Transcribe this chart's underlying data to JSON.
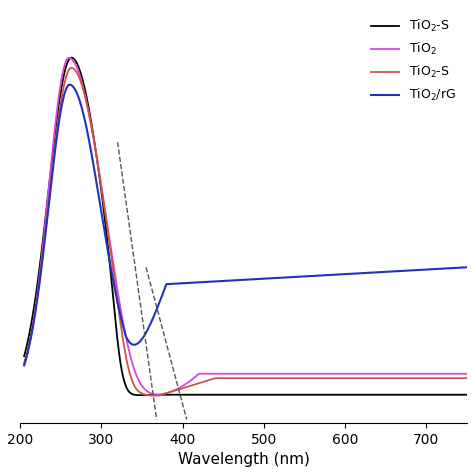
{
  "title": "",
  "xlabel": "Wavelength (nm)",
  "ylabel": "",
  "xlim": [
    205,
    750
  ],
  "ylim": [
    -0.08,
    1.15
  ],
  "x_ticks": [
    200,
    300,
    400,
    500,
    600,
    700
  ],
  "series": [
    {
      "label": "TiO$_2$-S",
      "color": "#000000",
      "lw": 1.3
    },
    {
      "label": "TiO$_2$",
      "color": "#dd44dd",
      "lw": 1.3
    },
    {
      "label": "TiO$_2$-S",
      "color": "#cc5544",
      "lw": 1.3
    },
    {
      "label": "TiO$_2$/rG",
      "color": "#2233bb",
      "lw": 1.5
    }
  ],
  "dashed_color": "#555555",
  "dashed_lw": 1.0,
  "legend_fontsize": 9,
  "xlabel_fontsize": 11
}
